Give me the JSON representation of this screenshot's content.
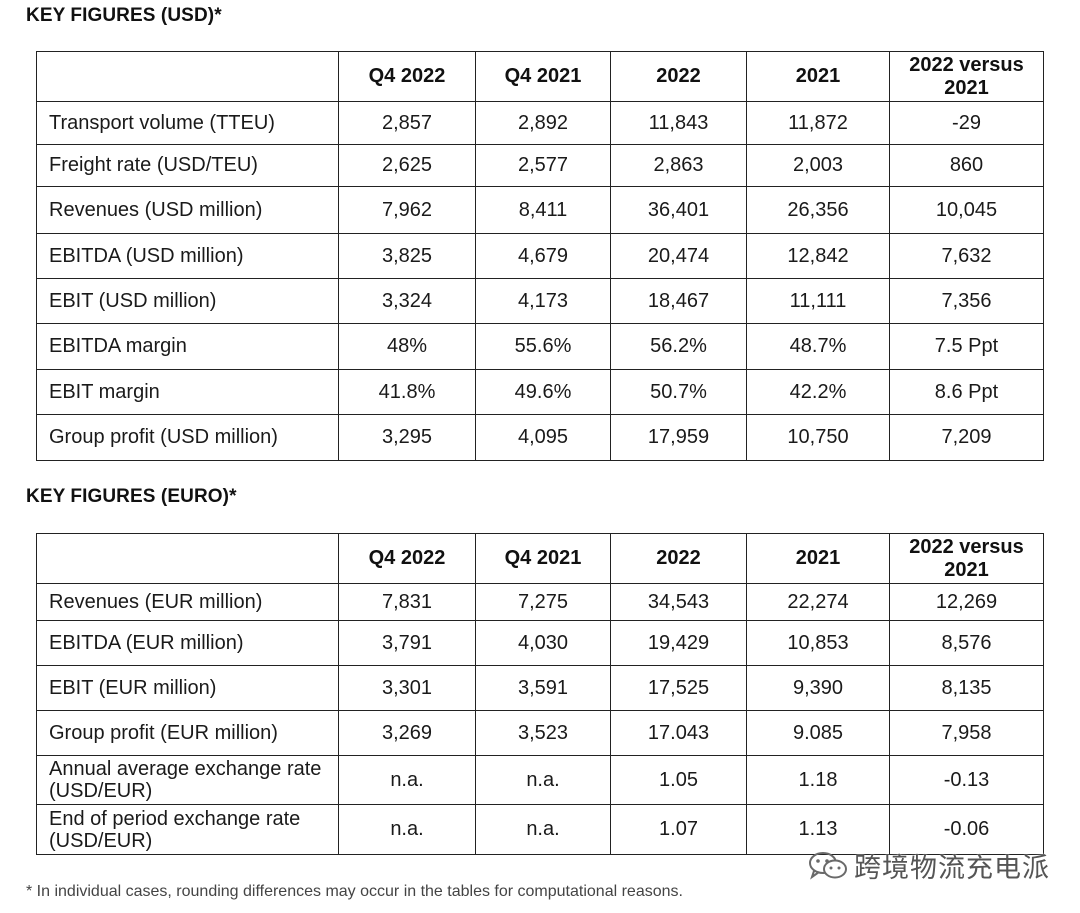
{
  "usd": {
    "title": "KEY FIGURES (USD)*",
    "headers": [
      "",
      "Q4 2022",
      "Q4 2021",
      "2022",
      "2021",
      "2022 versus 2021"
    ],
    "rows": [
      {
        "label": "Transport volume (TTEU)",
        "values": [
          "2,857",
          "2,892",
          "11,843",
          "11,872",
          "-29"
        ]
      },
      {
        "label": "Freight rate (USD/TEU)",
        "values": [
          "2,625",
          "2,577",
          "2,863",
          "2,003",
          "860"
        ]
      },
      {
        "label": "Revenues (USD million)",
        "values": [
          "7,962",
          "8,411",
          "36,401",
          "26,356",
          "10,045"
        ]
      },
      {
        "label": "EBITDA (USD million)",
        "values": [
          "3,825",
          "4,679",
          "20,474",
          "12,842",
          "7,632"
        ]
      },
      {
        "label": "EBIT (USD million)",
        "values": [
          "3,324",
          "4,173",
          "18,467",
          "11,111",
          "7,356"
        ]
      },
      {
        "label": "EBITDA margin",
        "values": [
          "48%",
          "55.6%",
          "56.2%",
          "48.7%",
          "7.5 Ppt"
        ]
      },
      {
        "label": "EBIT margin",
        "values": [
          "41.8%",
          "49.6%",
          "50.7%",
          "42.2%",
          "8.6 Ppt"
        ]
      },
      {
        "label": "Group profit (USD million)",
        "values": [
          "3,295",
          "4,095",
          "17,959",
          "10,750",
          "7,209"
        ]
      }
    ]
  },
  "eur": {
    "title": "KEY FIGURES (EURO)*",
    "headers": [
      "",
      "Q4 2022",
      "Q4 2021",
      "2022",
      "2021",
      "2022 versus 2021"
    ],
    "rows": [
      {
        "label": "Revenues (EUR million)",
        "values": [
          "7,831",
          "7,275",
          "34,543",
          "22,274",
          "12,269"
        ]
      },
      {
        "label": "EBITDA (EUR million)",
        "values": [
          "3,791",
          "4,030",
          "19,429",
          "10,853",
          "8,576"
        ]
      },
      {
        "label": "EBIT (EUR million)",
        "values": [
          "3,301",
          "3,591",
          "17,525",
          "9,390",
          "8,135"
        ]
      },
      {
        "label": "Group profit (EUR million)",
        "values": [
          "3,269",
          "3,523",
          "17.043",
          "9.085",
          "7,958"
        ]
      },
      {
        "label": "Annual average exchange rate (USD/EUR)",
        "values": [
          "n.a.",
          "n.a.",
          "1.05",
          "1.18",
          "-0.13"
        ]
      },
      {
        "label": "End of period exchange rate (USD/EUR)",
        "values": [
          "n.a.",
          "n.a.",
          "1.07",
          "1.13",
          "-0.06"
        ]
      }
    ]
  },
  "footnote": "* In individual cases, rounding differences may occur in the tables for computational reasons.",
  "watermark": {
    "text": "跨境物流充电派",
    "icon": "wechat-icon"
  }
}
